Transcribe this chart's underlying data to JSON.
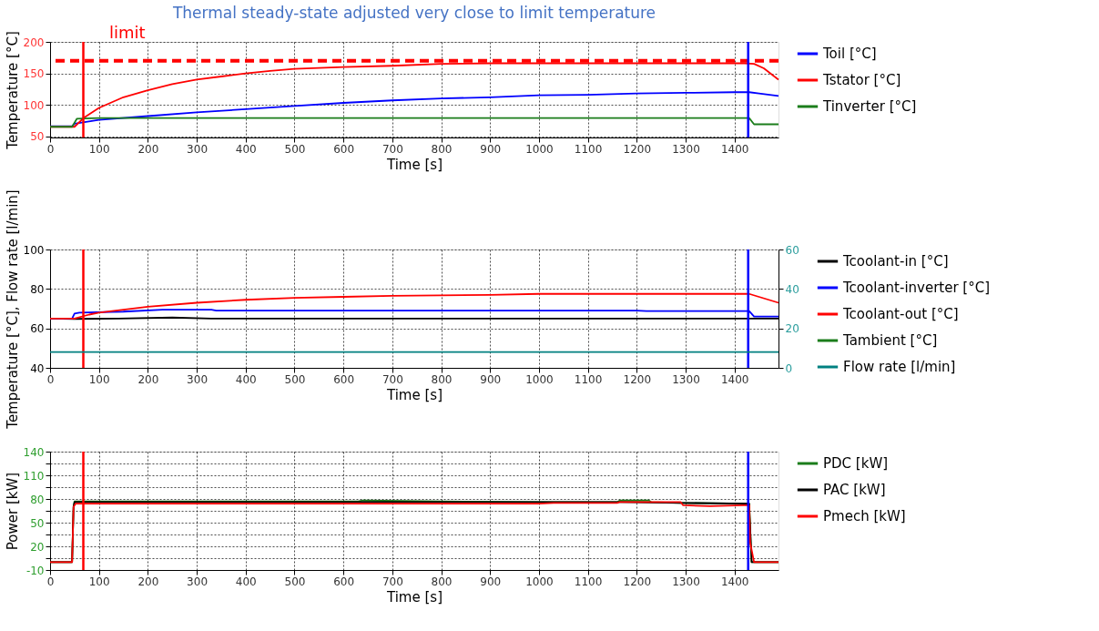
{
  "chart_data": [
    {
      "type": "line",
      "title": "Thermal steady-state adjusted very close to limit temperature",
      "xlabel": "Time [s]",
      "ylabel": "Temperature [°C]",
      "xlim": [
        0,
        1490
      ],
      "xticks": [
        0,
        100,
        200,
        300,
        400,
        500,
        600,
        700,
        800,
        900,
        1000,
        1100,
        1200,
        1300,
        1400
      ],
      "ylim": [
        48,
        200
      ],
      "yticks": [
        50,
        100,
        150,
        200
      ],
      "grid": true,
      "legend": "right",
      "series": [
        {
          "name": "Toil [°C]",
          "color": "#0000ff",
          "x": [
            0,
            45,
            50,
            100,
            200,
            300,
            400,
            500,
            600,
            700,
            800,
            900,
            1000,
            1100,
            1200,
            1300,
            1400,
            1430,
            1450,
            1490
          ],
          "values": [
            66,
            66,
            70,
            76,
            82,
            88,
            93,
            98,
            103,
            107,
            110,
            112,
            115,
            116,
            118,
            119,
            120,
            120,
            118,
            114
          ]
        },
        {
          "name": "Tstator [°C]",
          "color": "#ff0000",
          "x": [
            0,
            50,
            70,
            100,
            150,
            200,
            250,
            300,
            350,
            400,
            450,
            500,
            600,
            700,
            800,
            900,
            1000,
            1100,
            1200,
            1300,
            1420,
            1440,
            1460,
            1490
          ],
          "values": [
            65,
            65,
            80,
            95,
            112,
            123,
            133,
            140,
            145,
            150,
            154,
            157,
            160,
            162,
            165,
            166,
            166,
            166,
            166,
            166,
            166,
            165,
            158,
            140
          ]
        },
        {
          "name": "Tinverter [°C]",
          "color": "#1b7d1b",
          "x": [
            0,
            45,
            55,
            100,
            300,
            700,
            1100,
            1430,
            1440,
            1490
          ],
          "values": [
            65,
            65,
            78,
            79,
            79,
            79,
            79,
            79,
            69,
            69
          ]
        }
      ],
      "ref_lines": [
        {
          "axis": "y",
          "value": 170,
          "label": "limit",
          "color": "#ff0000",
          "line_style": "dashed"
        },
        {
          "axis": "x",
          "value": 68,
          "color": "#ff0000"
        },
        {
          "axis": "x",
          "value": 1428,
          "color": "#0000ff"
        }
      ]
    },
    {
      "type": "line",
      "xlabel": "Time [s]",
      "ylabel": "Temperature [°C], Flow rate [l/min]",
      "xlim": [
        0,
        1490
      ],
      "xticks": [
        0,
        100,
        200,
        300,
        400,
        500,
        600,
        700,
        800,
        900,
        1000,
        1100,
        1200,
        1300,
        1400
      ],
      "ylim": [
        40,
        100
      ],
      "yticks": [
        40,
        60,
        80,
        100
      ],
      "y2lim": [
        0,
        60
      ],
      "y2ticks": [
        0,
        20,
        40,
        60
      ],
      "grid": true,
      "legend": "right",
      "series": [
        {
          "name": "Tcoolant-in [°C]",
          "color": "#000000",
          "x": [
            0,
            50,
            140,
            250,
            330,
            1490
          ],
          "values": [
            65,
            64.8,
            65,
            65.5,
            65,
            65
          ]
        },
        {
          "name": "Tcoolant-inverter [°C]",
          "color": "#0000ff",
          "x": [
            0,
            45,
            50,
            60,
            150,
            230,
            330,
            340,
            1200,
            1220,
            1430,
            1440,
            1490
          ],
          "values": [
            65,
            65,
            67.5,
            68,
            68.5,
            69.5,
            69.5,
            69,
            69,
            68.8,
            68.8,
            66,
            66
          ]
        },
        {
          "name": "Tcoolant-out [°C]",
          "color": "#ff0000",
          "x": [
            0,
            50,
            80,
            100,
            150,
            200,
            300,
            400,
            500,
            600,
            700,
            900,
            1000,
            1100,
            1430,
            1450,
            1490
          ],
          "values": [
            65,
            65,
            67,
            68,
            69.5,
            71,
            73,
            74.5,
            75.5,
            76,
            76.5,
            77,
            77.5,
            77.5,
            77.5,
            76,
            73
          ]
        },
        {
          "name": "Tambient [°C]",
          "color": "#1b7d1b"
        },
        {
          "name": "Flow rate [l/min]",
          "color": "#008080",
          "axis": "y2",
          "x": [
            0,
            1490
          ],
          "values": [
            8,
            8
          ]
        }
      ],
      "ref_lines": [
        {
          "axis": "x",
          "value": 68,
          "color": "#ff0000"
        },
        {
          "axis": "x",
          "value": 1428,
          "color": "#0000ff"
        }
      ]
    },
    {
      "type": "line",
      "xlabel": "Time [s]",
      "ylabel": "Power [kW]",
      "xlim": [
        0,
        1490
      ],
      "xticks": [
        0,
        100,
        200,
        300,
        400,
        500,
        600,
        700,
        800,
        900,
        1000,
        1100,
        1200,
        1300,
        1400
      ],
      "ylim": [
        -10,
        140
      ],
      "yticks": [
        -10,
        {
          "value": 5,
          "label": null
        },
        20,
        {
          "value": 35,
          "label": null
        },
        50,
        {
          "value": 65,
          "label": null
        },
        80,
        {
          "value": 95,
          "label": null
        },
        110,
        {
          "value": 125,
          "label": null
        },
        140
      ],
      "grid": true,
      "legend": "right",
      "series": [
        {
          "name": "PDC [kW]",
          "color": "#1b7d1b",
          "x": [
            0,
            45,
            48,
            50,
            630,
            640,
            800,
            1000,
            1160,
            1165,
            1225,
            1230,
            1290,
            1420,
            1430,
            1435,
            1490
          ],
          "values": [
            0,
            0,
            70,
            77,
            77,
            78,
            77,
            76,
            76,
            78,
            78,
            76,
            75,
            74,
            74,
            0,
            0
          ]
        },
        {
          "name": "PAC [kW]",
          "color": "#000000",
          "x": [
            0,
            45,
            48,
            50,
            630,
            1160,
            1290,
            1430,
            1435,
            1490
          ],
          "values": [
            0,
            0,
            70,
            76,
            76,
            76,
            75,
            74,
            0,
            0
          ]
        },
        {
          "name": "Pmech [kW]",
          "color": "#ff0000",
          "x": [
            0,
            45,
            48,
            52,
            1000,
            1030,
            1160,
            1165,
            1290,
            1295,
            1350,
            1420,
            1430,
            1432,
            1440,
            1490
          ],
          "values": [
            0,
            0,
            70,
            74,
            74,
            75,
            75,
            76,
            76,
            72,
            71,
            72,
            72,
            25,
            0,
            0
          ]
        }
      ],
      "ref_lines": [
        {
          "axis": "x",
          "value": 68,
          "color": "#ff0000"
        },
        {
          "axis": "x",
          "value": 1428,
          "color": "#0000ff"
        }
      ]
    }
  ]
}
